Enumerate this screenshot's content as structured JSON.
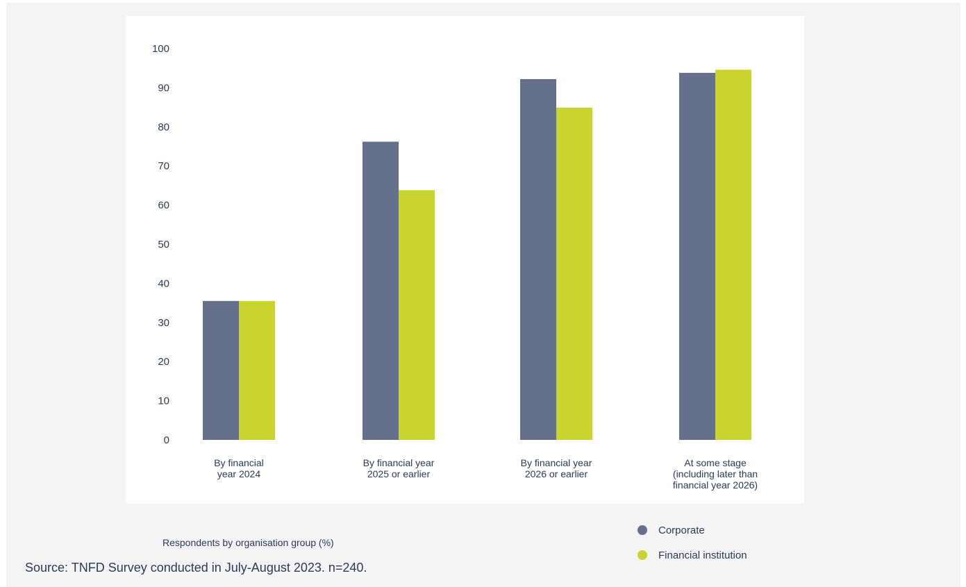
{
  "chart_data": {
    "type": "bar",
    "categories": [
      [
        "By financial",
        "year 2024"
      ],
      [
        "By financial year",
        "2025 or earlier"
      ],
      [
        "By financial year",
        "2026 or earlier"
      ],
      [
        "At some stage",
        "(including later than",
        "financial year 2026)"
      ]
    ],
    "series": [
      {
        "name": "Corporate",
        "color": "#65708d",
        "values": [
          35.5,
          76.2,
          92.2,
          93.8
        ]
      },
      {
        "name": "Financial institution",
        "color": "#c9d42f",
        "values": [
          35.5,
          63.8,
          84.9,
          94.6
        ]
      }
    ],
    "ylim": [
      0,
      100
    ],
    "yticks": [
      0,
      10,
      20,
      30,
      40,
      50,
      60,
      70,
      80,
      90,
      100
    ],
    "xlabel": "Respondents by organisation group (%)",
    "legend_position": "bottom-right"
  },
  "footer": {
    "source": "Source: TNFD Survey conducted in July-August 2023. n=240."
  }
}
